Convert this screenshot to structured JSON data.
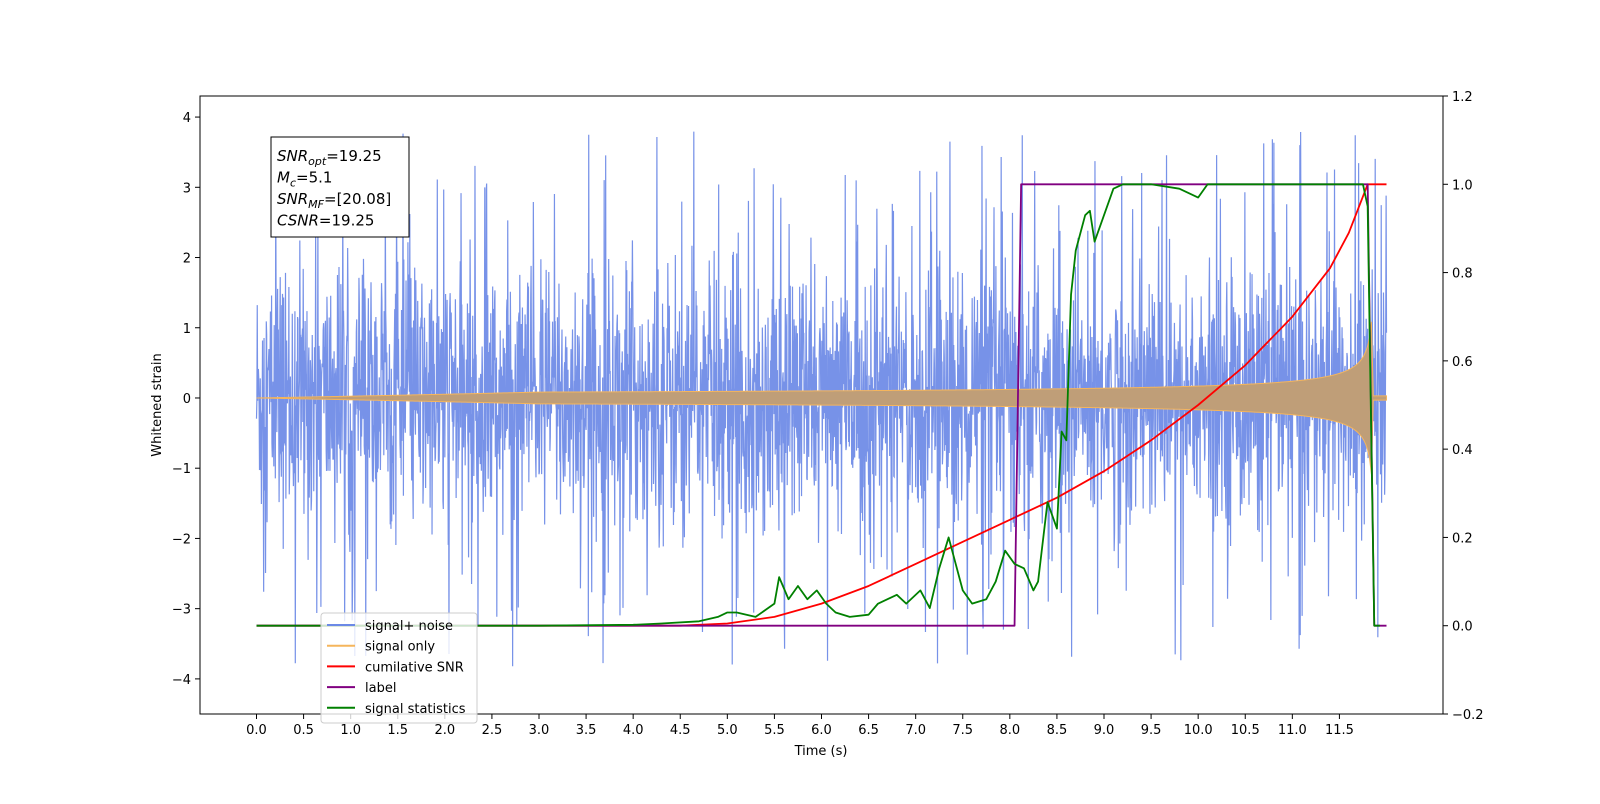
{
  "chart_data": {
    "type": "line",
    "title": "",
    "xlabel": "Time (s)",
    "ylabel": "Whitened strain",
    "xlim": [
      -0.6,
      12.6
    ],
    "ylim": [
      -4.5,
      4.3
    ],
    "y2lim": [
      -0.2,
      1.2
    ],
    "x_ticks": [
      "0.0",
      "0.5",
      "1.0",
      "1.5",
      "2.0",
      "2.5",
      "3.0",
      "3.5",
      "4.0",
      "4.5",
      "5.0",
      "5.5",
      "6.0",
      "6.5",
      "7.0",
      "7.5",
      "8.0",
      "8.5",
      "9.0",
      "9.5",
      "10.0",
      "10.5",
      "11.0",
      "11.5"
    ],
    "y_ticks": [
      "−4",
      "−3",
      "−2",
      "−1",
      "0",
      "1",
      "2",
      "3",
      "4"
    ],
    "y2_ticks": [
      "−0.2",
      "0.0",
      "0.2",
      "0.4",
      "0.6",
      "0.8",
      "1.0",
      "1.2"
    ],
    "grid": false,
    "legend_position": "lower-left",
    "series": [
      {
        "name": "signal+ noise",
        "axis": "left",
        "color": "#6b89e6",
        "description": "noisy whitened strain, roughly ±1.3 band with spikes to about ±3.9, time 0 to 12 s"
      },
      {
        "name": "signal only",
        "axis": "left",
        "color": "#f5b55c",
        "description": "chirp signal, envelope growing from 0 to about ±1.1 at 11.8 s then ends"
      },
      {
        "name": "cumilative SNR",
        "axis": "right",
        "x": [
          0.0,
          4.5,
          5.0,
          5.5,
          6.0,
          6.5,
          7.0,
          7.5,
          8.0,
          8.5,
          9.0,
          9.5,
          10.0,
          10.5,
          11.0,
          11.4,
          11.6,
          11.8,
          11.82,
          12.0
        ],
        "y": [
          0.0,
          0.0,
          0.005,
          0.02,
          0.05,
          0.09,
          0.14,
          0.19,
          0.24,
          0.29,
          0.35,
          0.42,
          0.5,
          0.59,
          0.7,
          0.81,
          0.89,
          1.0,
          1.0,
          1.0
        ]
      },
      {
        "name": "label",
        "axis": "right",
        "x": [
          0.0,
          8.05,
          8.12,
          11.8,
          11.87,
          12.0
        ],
        "y": [
          0.0,
          0.0,
          1.0,
          1.0,
          0.0,
          0.0
        ]
      },
      {
        "name": "signal statistics",
        "axis": "right",
        "x": [
          0.0,
          3.0,
          4.0,
          4.3,
          4.7,
          4.9,
          5.0,
          5.1,
          5.3,
          5.5,
          5.55,
          5.65,
          5.75,
          5.85,
          5.95,
          6.05,
          6.15,
          6.3,
          6.5,
          6.6,
          6.8,
          6.9,
          7.05,
          7.15,
          7.25,
          7.35,
          7.5,
          7.6,
          7.75,
          7.85,
          7.95,
          8.05,
          8.15,
          8.25,
          8.3,
          8.4,
          8.5,
          8.55,
          8.6,
          8.65,
          8.7,
          8.8,
          8.85,
          8.9,
          9.0,
          9.1,
          9.2,
          9.5,
          9.8,
          10.0,
          10.1,
          10.2,
          10.5,
          11.0,
          11.5,
          11.75,
          11.8,
          11.87,
          11.93
        ],
        "y": [
          0.0,
          0.0,
          0.002,
          0.005,
          0.01,
          0.02,
          0.03,
          0.03,
          0.02,
          0.05,
          0.11,
          0.06,
          0.09,
          0.06,
          0.08,
          0.05,
          0.03,
          0.02,
          0.025,
          0.05,
          0.07,
          0.05,
          0.08,
          0.04,
          0.13,
          0.2,
          0.08,
          0.05,
          0.06,
          0.1,
          0.17,
          0.14,
          0.13,
          0.08,
          0.1,
          0.28,
          0.22,
          0.44,
          0.42,
          0.75,
          0.85,
          0.93,
          0.94,
          0.87,
          0.93,
          0.99,
          1.0,
          1.0,
          0.99,
          0.97,
          1.0,
          1.0,
          1.0,
          1.0,
          1.0,
          1.0,
          0.95,
          0.0,
          0.0
        ]
      }
    ],
    "colors": {
      "noise": "#6b89e6",
      "signal": "#f5b55c",
      "overlap": "#bf9e78",
      "cumulative_snr": "#ff0000",
      "label": "#800080",
      "statistics": "#008000"
    }
  },
  "stats_box": {
    "lines": [
      {
        "main": "SNR",
        "sub": "opt",
        "value": "=19.25"
      },
      {
        "main": "M",
        "sub": "c",
        "value": "=5.1"
      },
      {
        "main": "SNR",
        "sub": "MF",
        "value": "=[20.08]"
      },
      {
        "main": "CSNR",
        "sub": "",
        "value": "=19.25"
      }
    ]
  },
  "legend": {
    "items": [
      {
        "label": "signal+ noise",
        "color": "#6b89e6"
      },
      {
        "label": "signal only",
        "color": "#f5b55c"
      },
      {
        "label": "cumilative SNR",
        "color": "#ff0000"
      },
      {
        "label": "label",
        "color": "#800080"
      },
      {
        "label": "signal statistics",
        "color": "#008000"
      }
    ]
  }
}
